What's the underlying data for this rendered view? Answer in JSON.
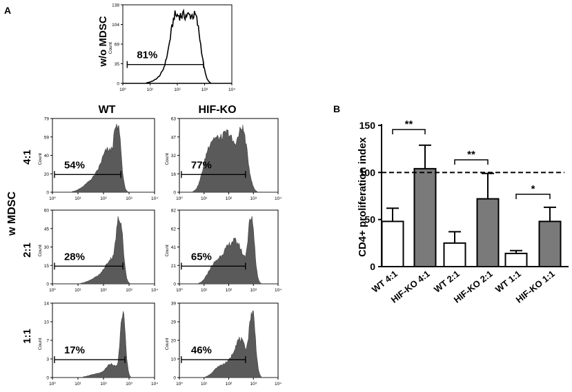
{
  "panel_a": {
    "panel_label": "A",
    "top_row_label": "w/o MDSC",
    "side_label": "w MDSC",
    "column_labels": [
      "WT",
      "HIF-KO"
    ],
    "row_labels": [
      "4:1",
      "2:1",
      "1:1"
    ],
    "y_axis_title": "Count",
    "x_tick_labels": [
      "10⁰",
      "10¹",
      "10²",
      "10³",
      "10⁴"
    ],
    "histograms": [
      {
        "id": "womdsc",
        "percent": "81%",
        "yticks": [
          "0",
          "35",
          "69",
          "104",
          "138"
        ],
        "filled": false,
        "gate": [
          0.04,
          0.74
        ]
      },
      {
        "id": "wt-4-1",
        "percent": "54%",
        "yticks": [
          "0",
          "20",
          "40",
          "59",
          "79"
        ],
        "filled": true,
        "gate": [
          0.02,
          0.67
        ]
      },
      {
        "id": "hif-4-1",
        "percent": "77%",
        "yticks": [
          "0",
          "16",
          "32",
          "47",
          "63"
        ],
        "filled": true,
        "gate": [
          0.02,
          0.67
        ]
      },
      {
        "id": "wt-2-1",
        "percent": "28%",
        "yticks": [
          "0",
          "15",
          "30",
          "45",
          "60"
        ],
        "filled": true,
        "gate": [
          0.02,
          0.69
        ]
      },
      {
        "id": "hif-2-1",
        "percent": "65%",
        "yticks": [
          "0",
          "21",
          "41",
          "62",
          "82"
        ],
        "filled": true,
        "gate": [
          0.02,
          0.67
        ]
      },
      {
        "id": "wt-1-1",
        "percent": "17%",
        "yticks": [
          "0",
          "3",
          "7",
          "10",
          "14"
        ],
        "filled": true,
        "gate": [
          0.02,
          0.71
        ]
      },
      {
        "id": "hif-1-1",
        "percent": "46%",
        "yticks": [
          "0",
          "10",
          "20",
          "29",
          "39"
        ],
        "filled": true,
        "gate": [
          0.02,
          0.67
        ]
      }
    ]
  },
  "panel_b": {
    "panel_label": "B"
  },
  "chart_data": {
    "type": "bar",
    "title": "",
    "xlabel": "",
    "ylabel": "CD4+ proliferation index",
    "ylim": [
      0,
      150
    ],
    "yticks": [
      0,
      50,
      100,
      150
    ],
    "categories": [
      "WT 4:1",
      "HIF-KO 4:1",
      "WT 2:1",
      "HIF-KO 2:1",
      "WT 1:1",
      "HIF-KO 1:1"
    ],
    "values": [
      48,
      104,
      25,
      72,
      14,
      48
    ],
    "errors": [
      14,
      25,
      12,
      27,
      3,
      15
    ],
    "colors": [
      "#ffffff",
      "#7a7a7a",
      "#ffffff",
      "#7a7a7a",
      "#ffffff",
      "#7a7a7a"
    ],
    "reference_line": 100,
    "significance": [
      {
        "from": 0,
        "to": 1,
        "label": "**"
      },
      {
        "from": 2,
        "to": 3,
        "label": "**"
      },
      {
        "from": 4,
        "to": 5,
        "label": "*"
      }
    ]
  }
}
